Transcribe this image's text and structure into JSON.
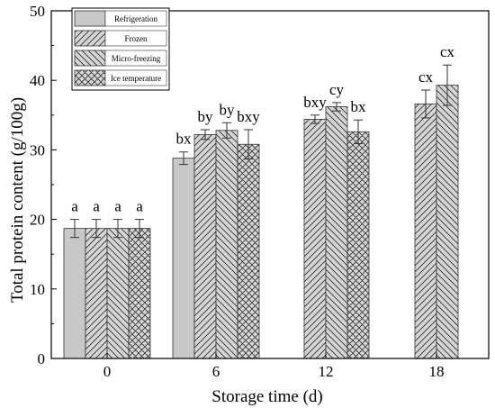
{
  "chart_data": {
    "type": "bar",
    "xlabel": "Storage time (d)",
    "ylabel": "Total protein content (g/100g)",
    "ylim": [
      0,
      50
    ],
    "yticks": [
      0,
      10,
      20,
      30,
      40,
      50
    ],
    "categories": [
      "0",
      "6",
      "12",
      "18"
    ],
    "grid": false,
    "legend": "top-left",
    "series": [
      {
        "name": "Refrigeration",
        "pattern": "solid-gray",
        "values": [
          18.7,
          28.8,
          null,
          null
        ],
        "errors": [
          1.3,
          0.9,
          null,
          null
        ],
        "labels": [
          "a",
          "bx",
          "",
          ""
        ]
      },
      {
        "name": "Frozen",
        "pattern": "hatch-forward",
        "values": [
          18.7,
          32.2,
          34.4,
          36.6
        ],
        "errors": [
          1.3,
          0.7,
          0.6,
          2.0
        ],
        "labels": [
          "a",
          "by",
          "bxy",
          "cx"
        ]
      },
      {
        "name": "Micro-freezing",
        "pattern": "hatch-back",
        "values": [
          18.7,
          32.8,
          36.2,
          39.3
        ],
        "errors": [
          1.3,
          1.1,
          0.6,
          2.9
        ],
        "labels": [
          "a",
          "by",
          "cy",
          "cx"
        ]
      },
      {
        "name": "Ice temperature",
        "pattern": "crosshatch",
        "values": [
          18.7,
          30.8,
          32.6,
          null
        ],
        "errors": [
          1.3,
          2.1,
          1.7,
          null
        ],
        "labels": [
          "a",
          "bxy",
          "bx",
          ""
        ]
      }
    ],
    "colors": {
      "solid_gray": "#c8c8c8",
      "hatch_fill": "#d6d6d6",
      "stroke": "#333333"
    }
  }
}
